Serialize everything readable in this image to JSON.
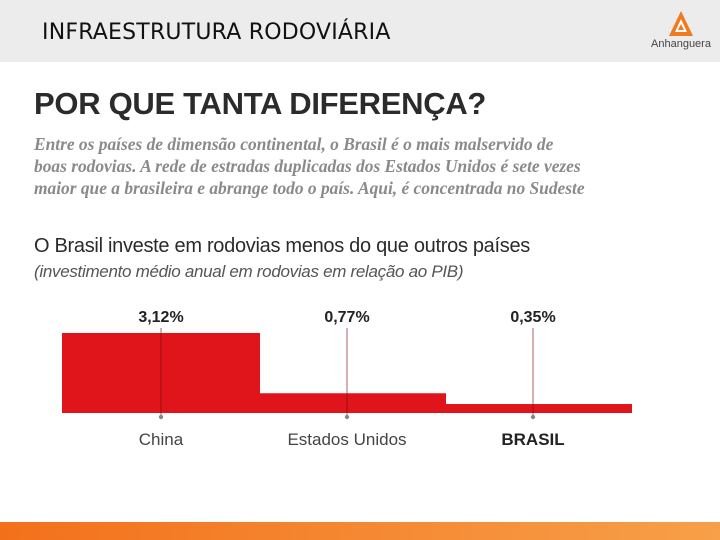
{
  "header": {
    "title": "INFRAESTRUTURA RODOVIÁRIA",
    "logo_text": "Anhanguera",
    "logo_icon": "anhanguera-logo-icon"
  },
  "article": {
    "headline": "POR QUE TANTA DIFERENÇA?",
    "lead_lines": [
      "Entre os países de dimensão continental, o Brasil é o mais malservido de",
      "boas rodovias. A rede de estradas duplicadas dos Estados Unidos é sete vezes",
      "maior que a brasileira e abrange todo o país. Aqui, é concentrada no Sudeste"
    ]
  },
  "chart_data": {
    "type": "bar",
    "title": "O Brasil investe em rodovias menos do que outros países",
    "subtitle": "(investimento médio anual em rodovias em relação ao PIB)",
    "categories": [
      "China",
      "Estados Unidos",
      "BRASIL"
    ],
    "values": [
      3.12,
      0.77,
      0.35
    ],
    "value_labels": [
      "3,12%",
      "0,77%",
      "0,35%"
    ],
    "unit": "%",
    "ylim": [
      0,
      3.12
    ],
    "grid": false,
    "legend": "none",
    "bar_color": "#e0151b",
    "emphasized_category": "BRASIL"
  },
  "colors": {
    "accent": "#e0151b",
    "footer": "#f3701b"
  }
}
